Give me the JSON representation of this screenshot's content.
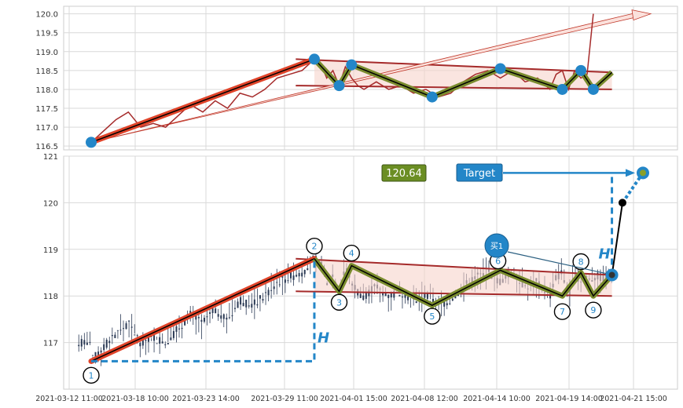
{
  "chart_data": [
    {
      "type": "line",
      "panel": "top",
      "ylim": [
        116.4,
        120.2
      ],
      "yticks": [
        "116.5",
        "117.0",
        "117.5",
        "118.0",
        "118.5",
        "119.0",
        "119.5",
        "120.0"
      ],
      "grid": true,
      "price_series": [
        [
          0,
          116.6
        ],
        [
          2,
          116.9
        ],
        [
          4,
          117.2
        ],
        [
          6,
          117.4
        ],
        [
          8,
          117.0
        ],
        [
          10,
          117.1
        ],
        [
          12,
          117.0
        ],
        [
          14,
          117.3
        ],
        [
          16,
          117.6
        ],
        [
          18,
          117.4
        ],
        [
          20,
          117.7
        ],
        [
          22,
          117.5
        ],
        [
          24,
          117.9
        ],
        [
          26,
          117.8
        ],
        [
          28,
          118.0
        ],
        [
          30,
          118.3
        ],
        [
          32,
          118.4
        ],
        [
          34,
          118.5
        ],
        [
          36,
          118.8
        ],
        [
          37,
          118.7
        ],
        [
          38,
          118.3
        ],
        [
          39,
          118.5
        ],
        [
          40,
          118.1
        ],
        [
          41,
          118.6
        ],
        [
          42,
          118.3
        ],
        [
          43,
          118.1
        ],
        [
          44,
          118.0
        ],
        [
          46,
          118.2
        ],
        [
          48,
          118.0
        ],
        [
          50,
          118.1
        ],
        [
          52,
          117.9
        ],
        [
          54,
          118.0
        ],
        [
          56,
          117.8
        ],
        [
          58,
          117.9
        ],
        [
          60,
          118.2
        ],
        [
          62,
          118.4
        ],
        [
          64,
          118.5
        ],
        [
          66,
          118.3
        ],
        [
          68,
          118.5
        ],
        [
          70,
          118.2
        ],
        [
          72,
          118.3
        ],
        [
          74,
          118.0
        ],
        [
          75,
          118.4
        ],
        [
          76,
          118.5
        ],
        [
          77,
          118.0
        ],
        [
          78,
          118.5
        ],
        [
          79,
          118.3
        ],
        [
          80,
          118.4
        ],
        [
          81,
          120.0
        ]
      ],
      "zigzag": [
        [
          0,
          116.6
        ],
        [
          36,
          118.8
        ],
        [
          40,
          118.1
        ],
        [
          42,
          118.65
        ],
        [
          55,
          117.8
        ],
        [
          66,
          118.55
        ],
        [
          76,
          118.0
        ],
        [
          79,
          118.5
        ],
        [
          81,
          118.0
        ],
        [
          84,
          118.45
        ]
      ],
      "channel_upper": [
        [
          36,
          118.8
        ],
        [
          84,
          118.45
        ]
      ],
      "channel_lower": [
        [
          36,
          118.1
        ],
        [
          84,
          118.0
        ]
      ],
      "projection_arrow": [
        [
          0,
          116.6
        ],
        [
          89,
          120.0
        ]
      ],
      "markers": [
        [
          0,
          116.6
        ],
        [
          36,
          118.8
        ],
        [
          40,
          118.1
        ],
        [
          42,
          118.65
        ],
        [
          55,
          117.8
        ],
        [
          66,
          118.55
        ],
        [
          76,
          118.0
        ],
        [
          79,
          118.5
        ],
        [
          81,
          118.0
        ]
      ]
    },
    {
      "type": "candlestick",
      "panel": "bottom",
      "ylim": [
        116.0,
        121.0
      ],
      "yticks": [
        "117",
        "118",
        "119",
        "120",
        "121"
      ],
      "xtick_labels": [
        "2021-03-12 11:00",
        "2021-03-18 10:00",
        "2021-03-23 14:00",
        "2021-03-29 11:00",
        "2021-04-01 15:00",
        "2021-04-08 12:00",
        "2021-04-14 10:00",
        "2021-04-19 14:00",
        "2021-04-21 15:00"
      ],
      "grid": true,
      "pivots": [
        {
          "label": "1",
          "x": 0,
          "y": 116.6
        },
        {
          "label": "2",
          "x": 36,
          "y": 118.8
        },
        {
          "label": "3",
          "x": 40,
          "y": 118.1
        },
        {
          "label": "4",
          "x": 42,
          "y": 118.65
        },
        {
          "label": "5",
          "x": 55,
          "y": 117.8
        },
        {
          "label": "6",
          "x": 66,
          "y": 118.55
        },
        {
          "label": "7",
          "x": 76,
          "y": 118.0
        },
        {
          "label": "8",
          "x": 79,
          "y": 118.5
        },
        {
          "label": "9",
          "x": 81,
          "y": 118.0
        }
      ],
      "breakout_point": [
        84,
        118.45
      ],
      "target_point": [
        89,
        120.64
      ],
      "target_value": "120.64",
      "target_label": "Target",
      "buy_label": "买1",
      "height_label": "H",
      "channel_upper": [
        [
          36,
          118.8
        ],
        [
          84,
          118.45
        ]
      ],
      "channel_lower": [
        [
          36,
          118.1
        ],
        [
          84,
          118.0
        ]
      ]
    }
  ],
  "colors": {
    "trend": "#c0392b",
    "zigzag_fill": "#7a8c2e",
    "marker": "#2386c8",
    "target_box": "#6b8e23",
    "channel_fill": "#f7d3cc",
    "candle": "#2b3a55"
  }
}
